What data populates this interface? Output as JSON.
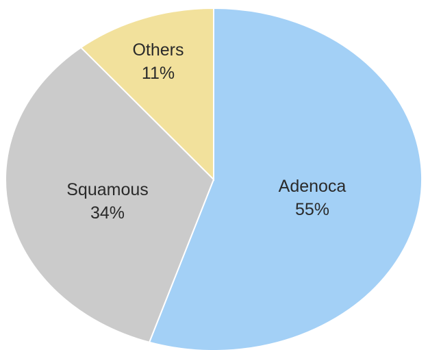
{
  "chart_data": {
    "type": "pie",
    "title": "",
    "slices": [
      {
        "label": "Adenoca",
        "value": 55,
        "value_label": "55%",
        "color": "#a3d0f6"
      },
      {
        "label": "Squamous",
        "value": 34,
        "value_label": "34%",
        "color": "#cbcbcb"
      },
      {
        "label": "Others",
        "value": 11,
        "value_label": "11%",
        "color": "#f2e19c"
      }
    ],
    "start_angle": "12 o'clock",
    "direction": "clockwise",
    "slice_border_color": "#ffffff"
  }
}
